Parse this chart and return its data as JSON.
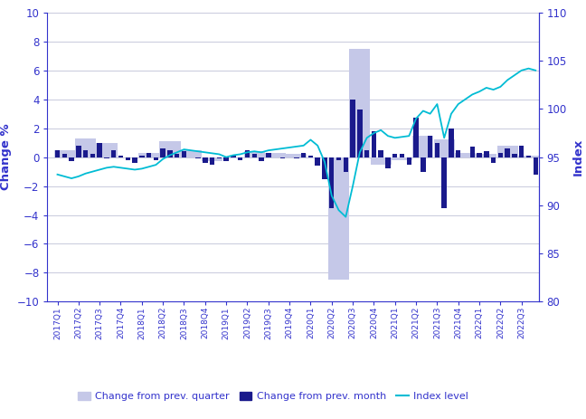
{
  "quarters": [
    "2017Q1",
    "2017Q2",
    "2017Q3",
    "2017Q4",
    "2018Q1",
    "2018Q2",
    "2018Q3",
    "2018Q4",
    "2019Q1",
    "2019Q2",
    "2019Q3",
    "2019Q4",
    "2020Q1",
    "2020Q2",
    "2020Q3",
    "2020Q4",
    "2021Q1",
    "2021Q2",
    "2021Q3",
    "2021Q4",
    "2022Q1",
    "2022Q2",
    "2022Q3"
  ],
  "quarterly_change": [
    0.5,
    1.3,
    1.0,
    0.0,
    0.3,
    1.1,
    0.5,
    -0.3,
    -0.1,
    0.4,
    0.3,
    0.2,
    -0.1,
    -8.5,
    7.5,
    -0.5,
    -0.2,
    1.5,
    1.2,
    0.3,
    0.2,
    0.8,
    0.1
  ],
  "monthly_change": [
    0.5,
    0.2,
    -0.3,
    0.8,
    0.5,
    0.2,
    1.0,
    -0.1,
    0.5,
    0.1,
    -0.2,
    -0.4,
    0.1,
    0.3,
    -0.2,
    0.6,
    0.5,
    0.2,
    0.4,
    0.0,
    -0.1,
    -0.4,
    -0.5,
    -0.1,
    -0.3,
    0.1,
    -0.2,
    0.5,
    0.2,
    -0.3,
    0.3,
    0.0,
    -0.1,
    0.0,
    -0.1,
    0.3,
    0.1,
    -0.6,
    -1.5,
    -3.5,
    -0.2,
    -1.0,
    4.0,
    3.3,
    0.5,
    1.8,
    0.5,
    -0.8,
    0.2,
    0.2,
    -0.5,
    2.7,
    -1.0,
    1.5,
    1.0,
    -3.5,
    2.0,
    0.5,
    0.0,
    0.7,
    0.3,
    0.4,
    -0.4,
    0.3,
    0.6,
    0.2,
    0.8,
    0.1,
    -1.2
  ],
  "index_level_monthly": [
    93.2,
    93.0,
    92.8,
    93.0,
    93.3,
    93.5,
    93.7,
    93.9,
    94.0,
    93.9,
    93.8,
    93.7,
    93.8,
    94.0,
    94.2,
    94.8,
    95.2,
    95.5,
    95.8,
    95.7,
    95.6,
    95.5,
    95.4,
    95.3,
    95.0,
    95.2,
    95.3,
    95.5,
    95.6,
    95.5,
    95.7,
    95.8,
    95.9,
    96.0,
    96.1,
    96.2,
    96.8,
    96.2,
    94.5,
    91.0,
    89.5,
    88.8,
    92.0,
    95.5,
    97.0,
    97.5,
    97.8,
    97.2,
    97.0,
    97.1,
    97.2,
    99.0,
    99.8,
    99.5,
    100.5,
    97.0,
    99.5,
    100.5,
    101.0,
    101.5,
    101.8,
    102.2,
    102.0,
    102.3,
    103.0,
    103.5,
    104.0,
    104.2,
    104.0
  ],
  "bar_color_quarterly": "#c5c8e8",
  "bar_color_monthly": "#1a1a8c",
  "line_color": "#00bcd4",
  "left_ylabel": "Change %",
  "right_ylabel": "Index",
  "ylim_left": [
    -10,
    10
  ],
  "ylim_right": [
    80,
    110
  ],
  "yticks_left": [
    -10,
    -8,
    -6,
    -4,
    -2,
    0,
    2,
    4,
    6,
    8,
    10
  ],
  "yticks_right": [
    80,
    85,
    90,
    95,
    100,
    105,
    110
  ],
  "axis_color": "#3333cc",
  "grid_color": "#c8cadc",
  "legend_labels": [
    "Change from prev. quarter",
    "Change from prev. month",
    "Index level"
  ]
}
